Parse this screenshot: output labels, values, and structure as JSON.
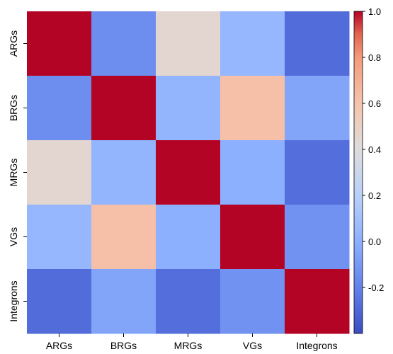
{
  "chart_data": {
    "type": "heatmap",
    "title": "",
    "xlabel": "",
    "ylabel": "",
    "x_categories": [
      "ARGs",
      "BRGs",
      "MRGs",
      "VGs",
      "Integrons"
    ],
    "y_categories": [
      "ARGs",
      "BRGs",
      "MRGs",
      "VGs",
      "Integrons"
    ],
    "values": [
      [
        1.0,
        -0.15,
        0.45,
        0.04,
        -0.28
      ],
      [
        -0.15,
        1.0,
        0.03,
        0.62,
        -0.05
      ],
      [
        0.45,
        0.03,
        1.0,
        0.0,
        -0.27
      ],
      [
        0.04,
        0.62,
        0.0,
        1.0,
        -0.13
      ],
      [
        -0.28,
        -0.05,
        -0.27,
        -0.13,
        1.0
      ]
    ],
    "colorbar": {
      "vmin": -0.4,
      "vmax": 1.0,
      "ticks": [
        -0.2,
        0.0,
        0.2,
        0.4,
        0.6,
        0.8,
        1.0
      ],
      "tick_labels": [
        "-0.2",
        "0.0",
        "0.2",
        "0.4",
        "0.6",
        "0.8",
        "1.0"
      ],
      "colormap": "coolwarm",
      "placement": "right"
    },
    "colormap_stops": [
      [
        0.0,
        "#3b4cc0"
      ],
      [
        0.143,
        "#6282ea"
      ],
      [
        0.286,
        "#8db0fe"
      ],
      [
        0.429,
        "#b8d0f9"
      ],
      [
        0.571,
        "#dddcdc"
      ],
      [
        0.714,
        "#f5c4ac"
      ],
      [
        0.857,
        "#f49a7b"
      ],
      [
        0.929,
        "#e0654f"
      ],
      [
        1.0,
        "#b40426"
      ]
    ]
  }
}
